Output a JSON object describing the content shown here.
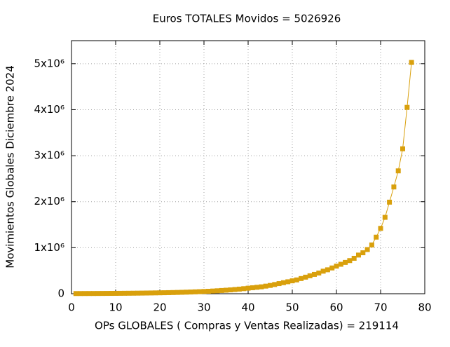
{
  "chart_data": {
    "type": "line",
    "title": "Euros TOTALES Movidos = 5026926",
    "x_label": "OPs GLOBALES ( Compras y Ventas Realizadas) = 219114",
    "y_label": "Movimientos Globales Diciembre 2024",
    "color": "#d9a00c",
    "grid": true,
    "xlim": [
      0,
      80
    ],
    "ylim": [
      0,
      5500000
    ],
    "xticks": [
      0,
      10,
      20,
      30,
      40,
      50,
      60,
      70,
      80
    ],
    "yticks": [
      0,
      {
        "value": 1000000,
        "label": "1x10⁶"
      },
      {
        "value": 2000000,
        "label": "2x10⁶"
      },
      {
        "value": 3000000,
        "label": "3x10⁶"
      },
      {
        "value": 4000000,
        "label": "4x10⁶"
      },
      {
        "value": 5000000,
        "label": "5x10⁶"
      }
    ],
    "x": [
      1,
      2,
      3,
      4,
      5,
      6,
      7,
      8,
      9,
      10,
      11,
      12,
      13,
      14,
      15,
      16,
      17,
      18,
      19,
      20,
      21,
      22,
      23,
      24,
      25,
      26,
      27,
      28,
      29,
      30,
      31,
      32,
      33,
      34,
      35,
      36,
      37,
      38,
      39,
      40,
      41,
      42,
      43,
      44,
      45,
      46,
      47,
      48,
      49,
      50,
      51,
      52,
      53,
      54,
      55,
      56,
      57,
      58,
      59,
      60,
      61,
      62,
      63,
      64,
      65,
      66,
      67,
      68,
      69,
      70,
      71,
      72,
      73,
      74,
      75,
      76,
      77
    ],
    "values": [
      3600,
      3900,
      4300,
      4700,
      5100,
      5600,
      6100,
      6700,
      7400,
      8000,
      8800,
      9600,
      10500,
      11500,
      12600,
      13800,
      15100,
      16500,
      18100,
      19800,
      21700,
      23700,
      25900,
      28400,
      31100,
      34000,
      37200,
      40700,
      44500,
      48800,
      53300,
      58400,
      63900,
      69900,
      76500,
      83700,
      91600,
      100200,
      109700,
      120000,
      130000,
      140000,
      150000,
      165000,
      180000,
      200000,
      220000,
      240000,
      260000,
      280000,
      300000,
      330000,
      360000,
      390000,
      420000,
      450000,
      490000,
      520000,
      560000,
      600000,
      640000,
      680000,
      720000,
      770000,
      840000,
      890000,
      960000,
      1060000,
      1230000,
      1420000,
      1660000,
      1990000,
      2320000,
      2670000,
      3150000,
      4050000,
      5026926
    ]
  }
}
